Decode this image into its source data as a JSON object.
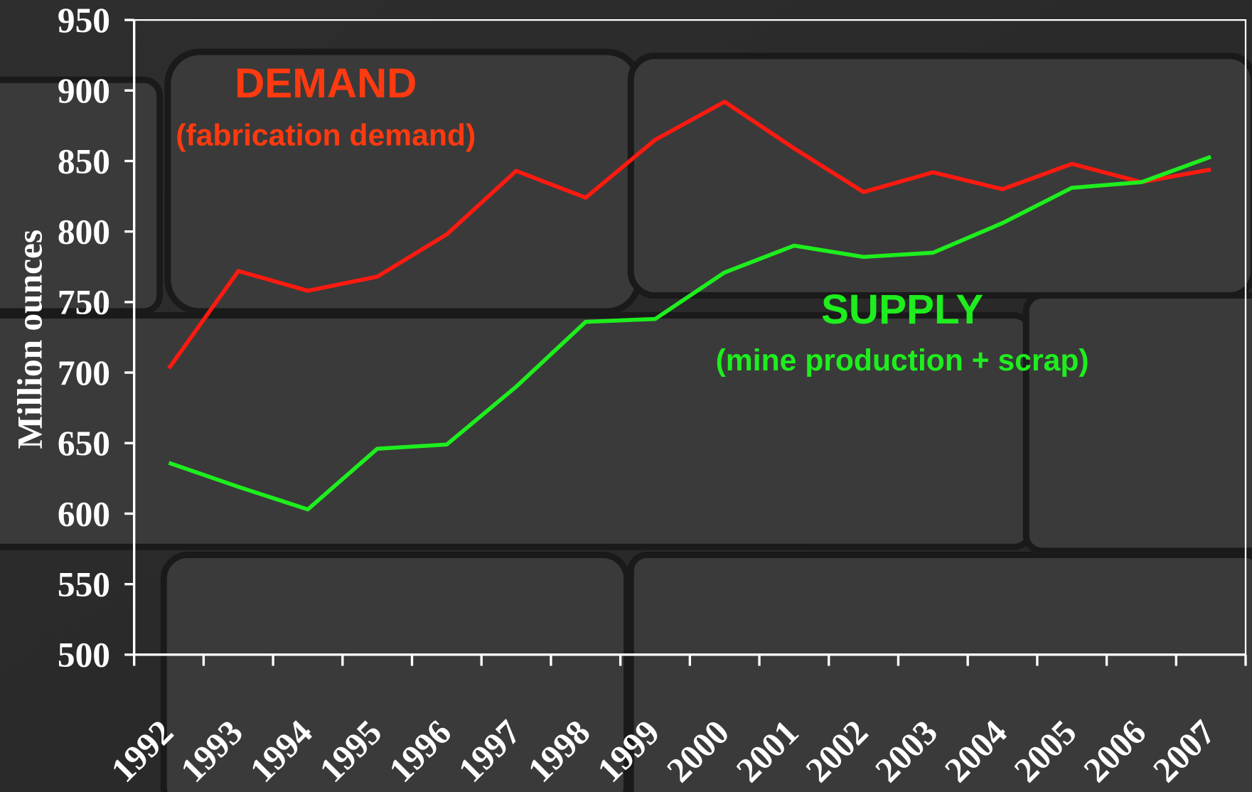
{
  "chart_data": {
    "type": "line",
    "y_label": "Million ounces",
    "annotations": [
      "DEMAND",
      "(fabrication demand)",
      "SUPPLY",
      "(mine production + scrap)"
    ],
    "categories": [
      "1992",
      "1993",
      "1994",
      "1995",
      "1996",
      "1997",
      "1998",
      "1999",
      "2000",
      "2001",
      "2002",
      "2003",
      "2004",
      "2005",
      "2006",
      "2007"
    ],
    "series": [
      {
        "name": "DEMAND",
        "color": "#ff1a10",
        "values": [
          703,
          772,
          758,
          768,
          798,
          843,
          824,
          865,
          892,
          859,
          828,
          842,
          830,
          848,
          835,
          844
        ]
      },
      {
        "name": "SUPPLY",
        "color": "#1eee1e",
        "values": [
          636,
          619,
          603,
          646,
          649,
          690,
          736,
          738,
          771,
          790,
          782,
          785,
          806,
          831,
          835,
          853
        ]
      }
    ],
    "ylim": [
      500,
      950
    ],
    "yticks": [
      500,
      550,
      600,
      650,
      700,
      750,
      800,
      850,
      900,
      950
    ]
  }
}
